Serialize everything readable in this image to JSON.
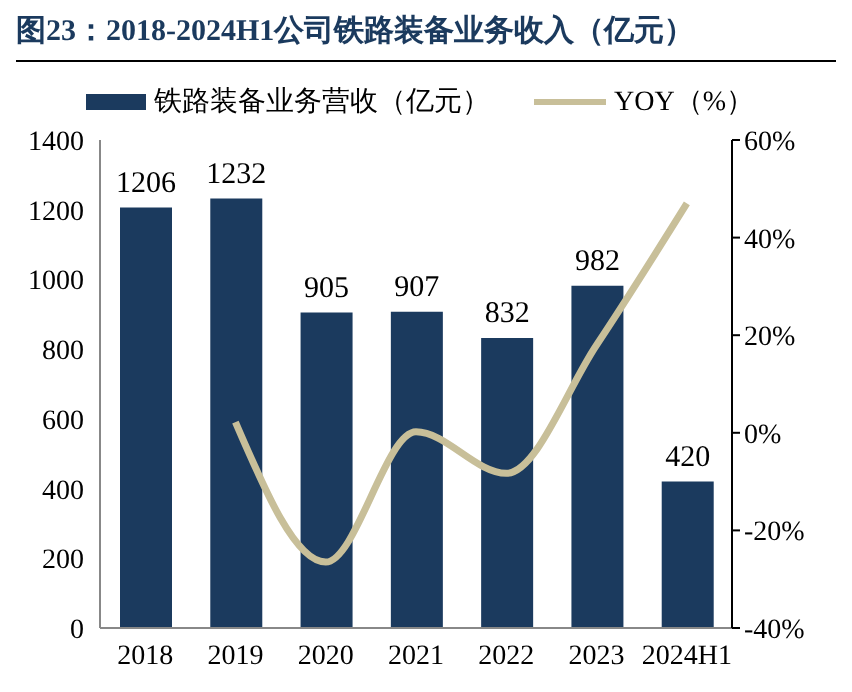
{
  "chart_data": {
    "type": "bar",
    "title": "图23：2018-2024H1公司铁路装备业务收入（亿元）",
    "categories": [
      "2018",
      "2019",
      "2020",
      "2021",
      "2022",
      "2023",
      "2024H1"
    ],
    "series": [
      {
        "name": "铁路装备业务营收（亿元）",
        "color": "#1b3a5e",
        "values": [
          1206,
          1232,
          905,
          907,
          832,
          982,
          420
        ],
        "value_labels": [
          "1206",
          "1232",
          "905",
          "907",
          "832",
          "982",
          "420"
        ]
      },
      {
        "name": "YOY（%）",
        "type": "line",
        "axis": "y2",
        "color": "#c8bf99",
        "values": [
          null,
          2.2,
          -26.5,
          0.2,
          -8.3,
          18,
          47
        ]
      }
    ],
    "ylim": [
      0,
      1400
    ],
    "yticks": [
      0,
      200,
      400,
      600,
      800,
      1000,
      1200,
      1400
    ],
    "y2lim": [
      -40,
      60
    ],
    "y2ticks": [
      {
        "value": -40,
        "label": "-40%"
      },
      {
        "value": -20,
        "label": "-20%"
      },
      {
        "value": 0,
        "label": "0%"
      },
      {
        "value": 20,
        "label": "20%"
      },
      {
        "value": 40,
        "label": "40%"
      },
      {
        "value": 60,
        "label": "60%"
      }
    ],
    "legend": "top",
    "marker": "none"
  }
}
